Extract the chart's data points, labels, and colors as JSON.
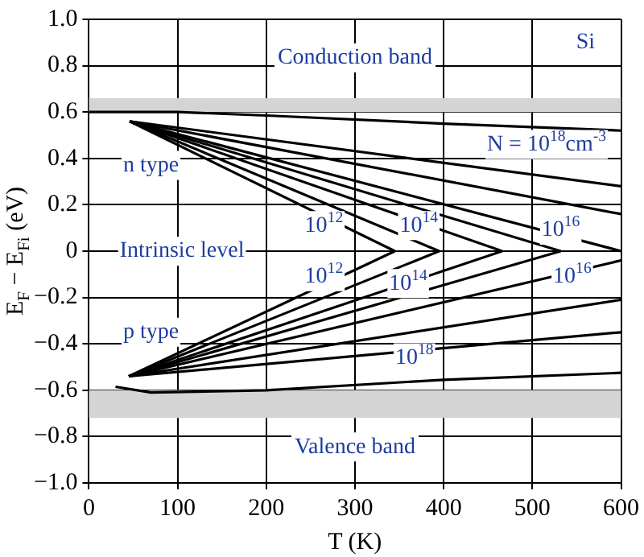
{
  "chart_data": {
    "type": "line",
    "xlabel": "T (K)",
    "ylabel": "E$_{F}$ − E$_{Fi}$ (eV)",
    "xlim": [
      0,
      600
    ],
    "xticks": [
      0,
      100,
      200,
      300,
      400,
      500,
      600
    ],
    "ylim": [
      -1,
      1
    ],
    "yticks": [
      {
        "value": -1,
        "label": "−1.0"
      },
      {
        "value": -0.8,
        "label": "−0.8"
      },
      {
        "value": -0.6,
        "label": "−0.6"
      },
      {
        "value": -0.4,
        "label": "−0.4"
      },
      {
        "value": -0.2,
        "label": "−0.2"
      },
      0,
      {
        "value": 0.2,
        "label": "0.2"
      },
      {
        "value": 0.4,
        "label": "0.4"
      },
      {
        "value": 0.6,
        "label": "0.6"
      },
      {
        "value": 0.8,
        "label": "0.8"
      },
      {
        "value": 1,
        "label": "1.0"
      }
    ],
    "grid": true,
    "legend": false,
    "marker": "none",
    "line_style": "solid",
    "series": [
      {
        "color": "#000000",
        "x": [
          46,
          345
        ],
        "values": [
          0.56,
          0
        ]
      },
      {
        "color": "#000000",
        "x": [
          46,
          395
        ],
        "values": [
          0.56,
          0
        ]
      },
      {
        "color": "#000000",
        "x": [
          46,
          466
        ],
        "values": [
          0.56,
          0
        ]
      },
      {
        "color": "#000000",
        "x": [
          46,
          532
        ],
        "values": [
          0.56,
          0
        ]
      },
      {
        "color": "#000000",
        "x": [
          46,
          600
        ],
        "values": [
          0.56,
          0
        ]
      },
      {
        "color": "#000000",
        "x": [
          46,
          600
        ],
        "values": [
          0.56,
          0.16
        ]
      },
      {
        "color": "#000000",
        "x": [
          46,
          600
        ],
        "values": [
          0.56,
          0.28
        ]
      },
      {
        "color": "#000000",
        "x": [
          0,
          100,
          200,
          400,
          600
        ],
        "values": [
          0.6,
          0.6,
          0.585,
          0.55,
          0.52
        ]
      },
      {
        "color": "#000000",
        "x": [
          45,
          345
        ],
        "values": [
          -0.54,
          0
        ]
      },
      {
        "color": "#000000",
        "x": [
          45,
          395
        ],
        "values": [
          -0.54,
          0
        ]
      },
      {
        "color": "#000000",
        "x": [
          45,
          466
        ],
        "values": [
          -0.54,
          0
        ]
      },
      {
        "color": "#000000",
        "x": [
          45,
          532
        ],
        "values": [
          -0.54,
          0
        ]
      },
      {
        "color": "#000000",
        "x": [
          45,
          600
        ],
        "values": [
          -0.54,
          -0.04
        ]
      },
      {
        "color": "#000000",
        "x": [
          45,
          600
        ],
        "values": [
          -0.54,
          -0.21
        ]
      },
      {
        "color": "#000000",
        "x": [
          45,
          600
        ],
        "values": [
          -0.54,
          -0.35
        ]
      },
      {
        "color": "#000000",
        "x": [
          30,
          70,
          200,
          400,
          600
        ],
        "values": [
          -0.585,
          -0.61,
          -0.6,
          -0.555,
          -0.525
        ]
      }
    ],
    "bands": [
      {
        "axis": "y",
        "from": 0.6,
        "to": 0.66,
        "label": "Conduction band",
        "color": "#d4d4d4"
      },
      {
        "axis": "y",
        "from": -0.72,
        "to": -0.6,
        "label": "Valence band",
        "color": "#d4d4d4"
      }
    ],
    "annotations": [
      {
        "text": "Si",
        "x": 560,
        "y": 0.9
      },
      {
        "text": "n type",
        "x": 70,
        "y": 0.37
      },
      "Intrinsic level",
      {
        "text": "p type",
        "x": 70,
        "y": -0.35
      },
      {
        "text": "10$^{12}$",
        "x": 265,
        "y": 0.11
      },
      {
        "text": "10$^{14}$",
        "x": 372,
        "y": 0.11
      },
      {
        "text": "10$^{16}$",
        "x": 532,
        "y": 0.09
      },
      "N = 10$^{18}$cm$^{-3}$",
      {
        "text": "10$^{12}$",
        "x": 265,
        "y": -0.11
      },
      {
        "text": "10$^{14}$",
        "x": 360,
        "y": -0.14
      },
      {
        "text": "10$^{16}$",
        "x": 545,
        "y": -0.11
      },
      {
        "text": "10$^{18}$",
        "x": 367,
        "y": -0.46
      }
    ]
  }
}
